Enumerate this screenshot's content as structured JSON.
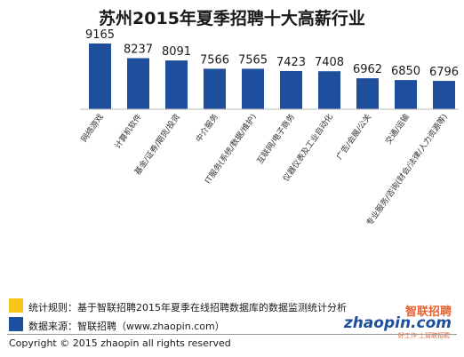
{
  "chart_data": {
    "type": "bar",
    "title": "苏州2015年夏季招聘十大高薪行业",
    "categories": [
      "网络游戏",
      "计算机软件",
      "基金/证券/期货/投资",
      "中介服务",
      "IT服务(系统/数据/维护)",
      "互联网/电子商务",
      "仪器仪表及工业自动化",
      "广告/会展/公关",
      "交通/运输",
      "专业服务/咨询(财会/法律/人力资源等)"
    ],
    "values": [
      9165,
      8237,
      8091,
      7566,
      7565,
      7423,
      7408,
      6962,
      6850,
      6796
    ],
    "ylim": [
      0,
      10000
    ],
    "grid": false,
    "bar_color": "#1f4e9c"
  },
  "legend": {
    "rule_text": "统计规则：基于智联招聘2015年夏季在线招聘数据库的数据监测统计分析",
    "source_text": "数据来源：智联招聘（www.zhaopin.com）",
    "rule_color": "#f5c518",
    "source_color": "#1f4e9c"
  },
  "logo": {
    "cn": "智联招聘",
    "en": "zhaopin.com",
    "tagline": "好工作 上智联招聘"
  },
  "footer": {
    "copyright": "Copyright   ©  2015 zhaopin all rights reserved"
  }
}
